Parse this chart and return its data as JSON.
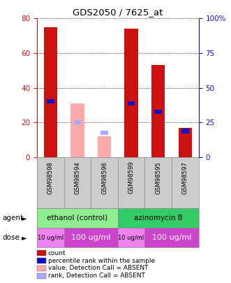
{
  "title": "GDS2050 / 7625_at",
  "samples": [
    "GSM98598",
    "GSM98594",
    "GSM98596",
    "GSM98599",
    "GSM98595",
    "GSM98597"
  ],
  "bar_data": [
    {
      "red_count": 75,
      "blue_rank": 32,
      "pink_value": null,
      "lightblue_rank": null
    },
    {
      "red_count": null,
      "blue_rank": null,
      "pink_value": 31,
      "lightblue_rank": 20
    },
    {
      "red_count": null,
      "blue_rank": null,
      "pink_value": 12,
      "lightblue_rank": 14
    },
    {
      "red_count": 74,
      "blue_rank": 31,
      "pink_value": null,
      "lightblue_rank": null
    },
    {
      "red_count": 53,
      "blue_rank": 26,
      "pink_value": null,
      "lightblue_rank": null
    },
    {
      "red_count": 17,
      "blue_rank": 15,
      "pink_value": null,
      "lightblue_rank": null
    }
  ],
  "ylim_left": [
    0,
    80
  ],
  "ylim_right": [
    0,
    100
  ],
  "yticks_left": [
    0,
    20,
    40,
    60,
    80
  ],
  "ytick_labels_right": [
    "0",
    "25",
    "50",
    "75",
    "100%"
  ],
  "agent_groups": [
    {
      "label": "ethanol (control)",
      "span": [
        0,
        3
      ],
      "color": "#90ee90"
    },
    {
      "label": "azinomycin B",
      "span": [
        3,
        6
      ],
      "color": "#33cc66"
    }
  ],
  "dose_groups": [
    {
      "label": "10 ug/ml",
      "span": [
        0,
        1
      ],
      "color": "#ee82ee",
      "small": true
    },
    {
      "label": "100 ug/ml",
      "span": [
        1,
        3
      ],
      "color": "#cc44cc",
      "small": false
    },
    {
      "label": "10 ug/ml",
      "span": [
        3,
        4
      ],
      "color": "#ee82ee",
      "small": true
    },
    {
      "label": "100 ug/ml",
      "span": [
        4,
        6
      ],
      "color": "#cc44cc",
      "small": false
    }
  ],
  "bar_width": 0.5,
  "red_color": "#cc1111",
  "blue_color": "#1111cc",
  "pink_color": "#ffaaaa",
  "lightblue_color": "#aaaaff",
  "bg_color": "#cccccc",
  "left_axis_color": "#cc1111",
  "right_axis_color": "#1111cc",
  "legend_items": [
    {
      "label": "count",
      "color": "#cc1111"
    },
    {
      "label": "percentile rank within the sample",
      "color": "#1111cc"
    },
    {
      "label": "value, Detection Call = ABSENT",
      "color": "#ffaaaa"
    },
    {
      "label": "rank, Detection Call = ABSENT",
      "color": "#aaaaff"
    }
  ]
}
